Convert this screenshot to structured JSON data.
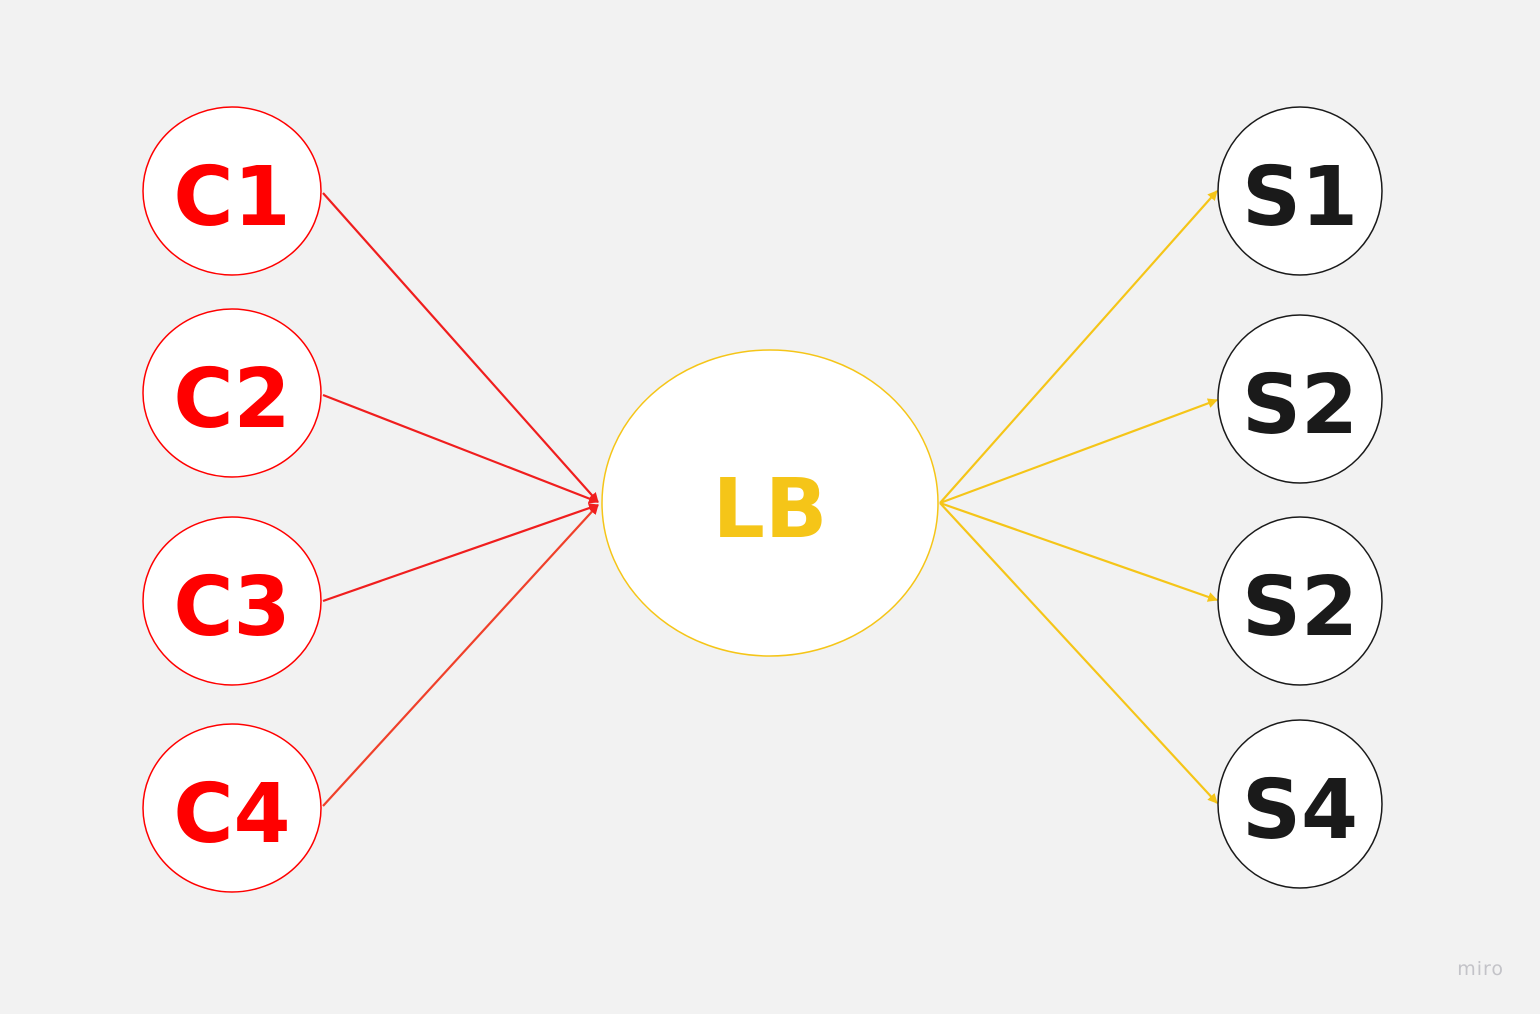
{
  "colors": {
    "background": "#f2f2f2",
    "client": "#ff0000",
    "client_arrow": "#f01e1e",
    "load_balancer": "#f5c518",
    "server": "#1a1a1a",
    "node_fill": "#ffffff"
  },
  "clients": [
    {
      "label": "C1"
    },
    {
      "label": "C2"
    },
    {
      "label": "C3"
    },
    {
      "label": "C4"
    }
  ],
  "load_balancer": {
    "label": "LB"
  },
  "servers": [
    {
      "label": "S1"
    },
    {
      "label": "S2"
    },
    {
      "label": "S2"
    },
    {
      "label": "S4"
    }
  ],
  "edges": [
    {
      "from": "C1",
      "to": "LB"
    },
    {
      "from": "C2",
      "to": "LB"
    },
    {
      "from": "C3",
      "to": "LB"
    },
    {
      "from": "C4",
      "to": "LB"
    },
    {
      "from": "LB",
      "to": "S1"
    },
    {
      "from": "LB",
      "to": "S2"
    },
    {
      "from": "LB",
      "to": "S2"
    },
    {
      "from": "LB",
      "to": "S4"
    }
  ],
  "watermark": "miro"
}
